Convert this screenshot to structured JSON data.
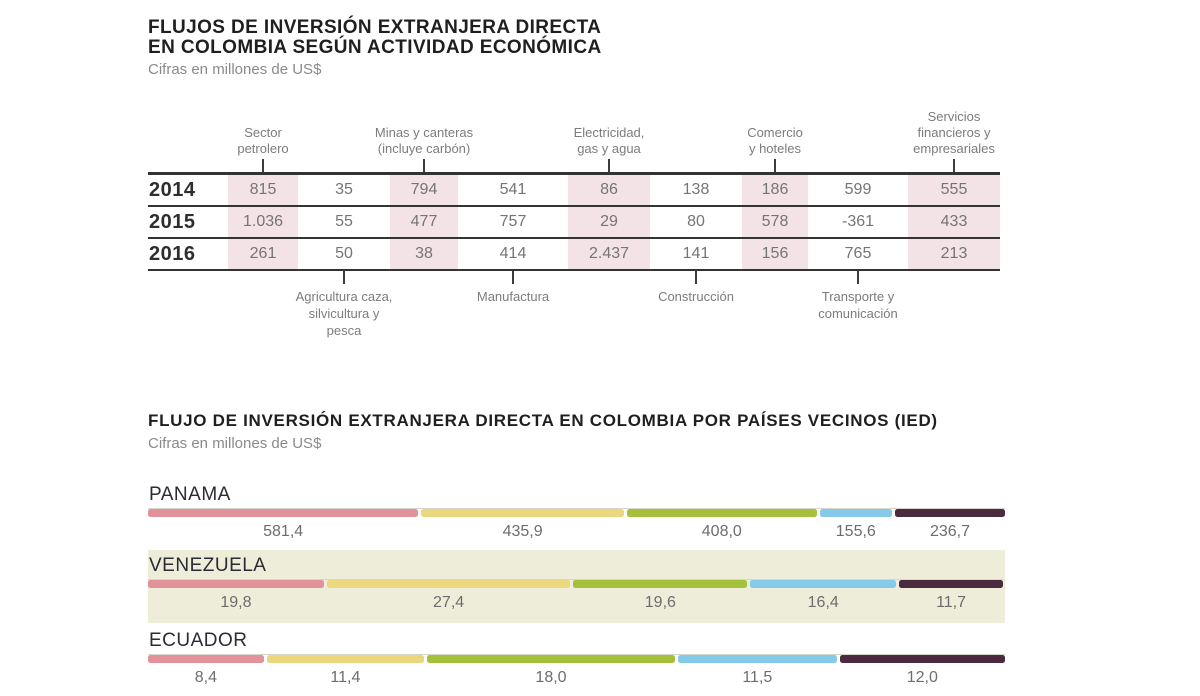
{
  "section1": {
    "title_line1": "FLUJOS DE INVERSIÓN EXTRANJERA DIRECTA",
    "title_line2": "EN COLOMBIA SEGÚN ACTIVIDAD ECONÓMICA",
    "subtitle": "Cifras en millones de US$",
    "top_labels": [
      "Sector\npetrolero",
      "Minas y canteras\n(incluye carbón)",
      "Electricidad,\ngas y agua",
      "Comercio\ny hoteles",
      "Servicios\nfinancieros y\nempresariales"
    ],
    "bottom_labels": [
      "Agricultura caza,\nsilvicultura y\npesca",
      "Manufactura",
      "Construcción",
      "Transporte y\ncomunicación"
    ],
    "years": [
      "2014",
      "2015",
      "2016"
    ],
    "rows": [
      [
        "815",
        "35",
        "794",
        "541",
        "86",
        "138",
        "186",
        "599",
        "555"
      ],
      [
        "1.036",
        "55",
        "477",
        "757",
        "29",
        "80",
        "578",
        "-361",
        "433"
      ],
      [
        "261",
        "50",
        "38",
        "414",
        "2.437",
        "141",
        "156",
        "765",
        "213"
      ]
    ],
    "highlight_color": "#f3e3e7"
  },
  "section2": {
    "title": "FLUJO DE INVERSIÓN EXTRANJERA DIRECTA EN COLOMBIA POR PAÍSES VECINOS (IED)",
    "subtitle": "Cifras en millones de US$",
    "colors": [
      "#e1929a",
      "#ebd77e",
      "#a5c13b",
      "#85cae8",
      "#4b2a40"
    ],
    "band_color": "#ededda",
    "countries": [
      {
        "name": "PANAMA",
        "values": [
          "581,4",
          "435,9",
          "408,0",
          "155,6",
          "236,7"
        ],
        "numeric": [
          581.4,
          435.9,
          408.0,
          155.6,
          236.7
        ],
        "highlight": false
      },
      {
        "name": "VENEZUELA",
        "values": [
          "19,8",
          "27,4",
          "19,6",
          "16,4",
          "11,7"
        ],
        "numeric": [
          19.8,
          27.4,
          19.6,
          16.4,
          11.7
        ],
        "highlight": true
      },
      {
        "name": "ECUADOR",
        "values": [
          "8,4",
          "11,4",
          "18,0",
          "11,5",
          "12,0"
        ],
        "numeric": [
          8.4,
          11.4,
          18.0,
          11.5,
          12.0
        ],
        "highlight": false
      }
    ]
  },
  "chart_data": [
    {
      "type": "table",
      "title": "FLUJOS DE INVERSIÓN EXTRANJERA DIRECTA EN COLOMBIA SEGÚN ACTIVIDAD ECONÓMICA",
      "unit": "millones de US$",
      "columns": [
        "Sector petrolero",
        "Agricultura caza, silvicultura y pesca",
        "Minas y canteras (incluye carbón)",
        "Manufactura",
        "Electricidad, gas y agua",
        "Construcción",
        "Comercio y hoteles",
        "Transporte y comunicación",
        "Servicios financieros y empresariales"
      ],
      "rows": [
        {
          "year": "2014",
          "values": [
            815,
            35,
            794,
            541,
            86,
            138,
            186,
            599,
            555
          ]
        },
        {
          "year": "2015",
          "values": [
            1036,
            55,
            477,
            757,
            29,
            80,
            578,
            -361,
            433
          ]
        },
        {
          "year": "2016",
          "values": [
            261,
            50,
            38,
            414,
            2437,
            141,
            156,
            765,
            213
          ]
        }
      ]
    },
    {
      "type": "bar",
      "subtype": "stacked-horizontal-100pct",
      "title": "FLUJO DE INVERSIÓN EXTRANJERA DIRECTA EN COLOMBIA POR PAÍSES VECINOS (IED)",
      "unit": "millones de US$",
      "categories": [
        "PANAMA",
        "VENEZUELA",
        "ECUADOR"
      ],
      "series": [
        {
          "color": "#e1929a",
          "values": [
            581.4,
            19.8,
            8.4
          ]
        },
        {
          "color": "#ebd77e",
          "values": [
            435.9,
            27.4,
            11.4
          ]
        },
        {
          "color": "#a5c13b",
          "values": [
            408.0,
            19.6,
            18.0
          ]
        },
        {
          "color": "#85cae8",
          "values": [
            155.6,
            16.4,
            11.5
          ]
        },
        {
          "color": "#4b2a40",
          "values": [
            236.7,
            11.7,
            12.0
          ]
        }
      ],
      "legend": false
    }
  ]
}
